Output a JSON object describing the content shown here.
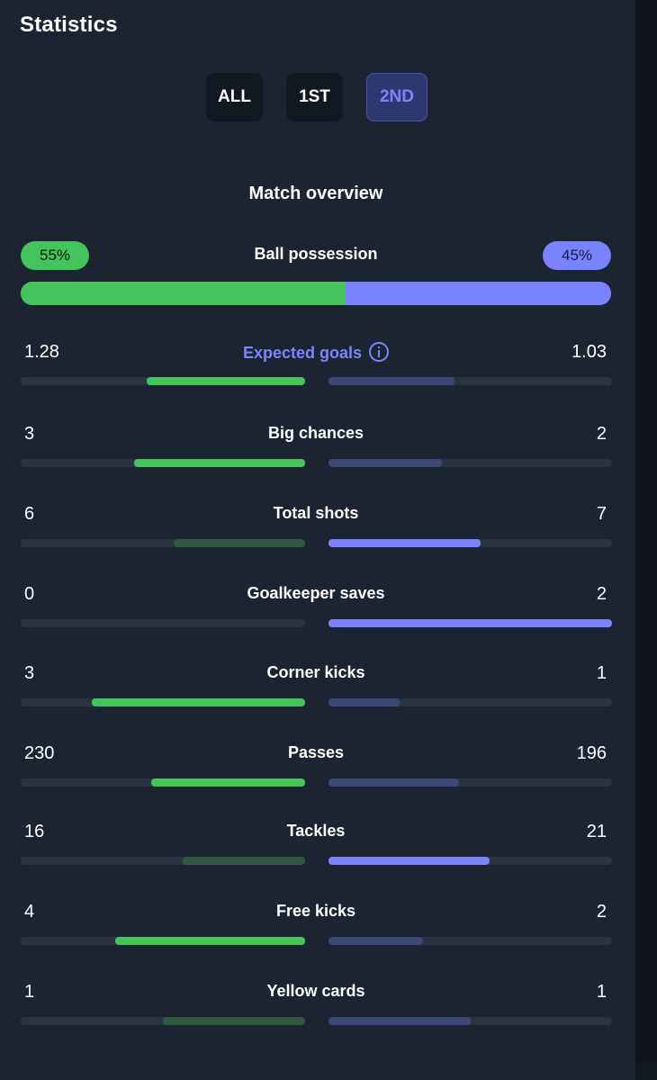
{
  "header": {
    "title": "Statistics"
  },
  "tabs": [
    {
      "label": "ALL",
      "active": false
    },
    {
      "label": "1ST",
      "active": false
    },
    {
      "label": "2ND",
      "active": true
    }
  ],
  "section_title": "Match overview",
  "possession": {
    "label": "Ball possession",
    "home": "55%",
    "away": "45%",
    "home_fraction": 0.55
  },
  "colors": {
    "home": "#44c45a",
    "away": "#7b82ff",
    "accent": "#7a85ff"
  },
  "stats": [
    {
      "label": "Expected goals",
      "home": "1.28",
      "away": "1.03",
      "info_icon": true,
      "link": true,
      "home_fraction": 0.557,
      "away_fraction": 0.443,
      "home_winner": true,
      "away_winner": false
    },
    {
      "label": "Big chances",
      "home": "3",
      "away": "2",
      "home_fraction": 0.6,
      "away_fraction": 0.4,
      "home_winner": true,
      "away_winner": false
    },
    {
      "label": "Total shots",
      "home": "6",
      "away": "7",
      "home_fraction": 0.462,
      "away_fraction": 0.538,
      "home_winner": false,
      "away_winner": true
    },
    {
      "label": "Goalkeeper saves",
      "home": "0",
      "away": "2",
      "home_fraction": 0.0,
      "away_fraction": 1.0,
      "home_winner": false,
      "away_winner": true
    },
    {
      "label": "Corner kicks",
      "home": "3",
      "away": "1",
      "home_fraction": 0.75,
      "away_fraction": 0.25,
      "home_winner": true,
      "away_winner": false
    },
    {
      "label": "Passes",
      "home": "230",
      "away": "196",
      "home_fraction": 0.54,
      "away_fraction": 0.46,
      "home_winner": true,
      "away_winner": false
    },
    {
      "label": "Tackles",
      "home": "16",
      "away": "21",
      "home_fraction": 0.432,
      "away_fraction": 0.568,
      "home_winner": false,
      "away_winner": true
    },
    {
      "label": "Free kicks",
      "home": "4",
      "away": "2",
      "home_fraction": 0.667,
      "away_fraction": 0.333,
      "home_winner": true,
      "away_winner": false
    },
    {
      "label": "Yellow cards",
      "home": "1",
      "away": "1",
      "home_fraction": 0.5,
      "away_fraction": 0.5,
      "home_winner": false,
      "away_winner": false
    }
  ]
}
